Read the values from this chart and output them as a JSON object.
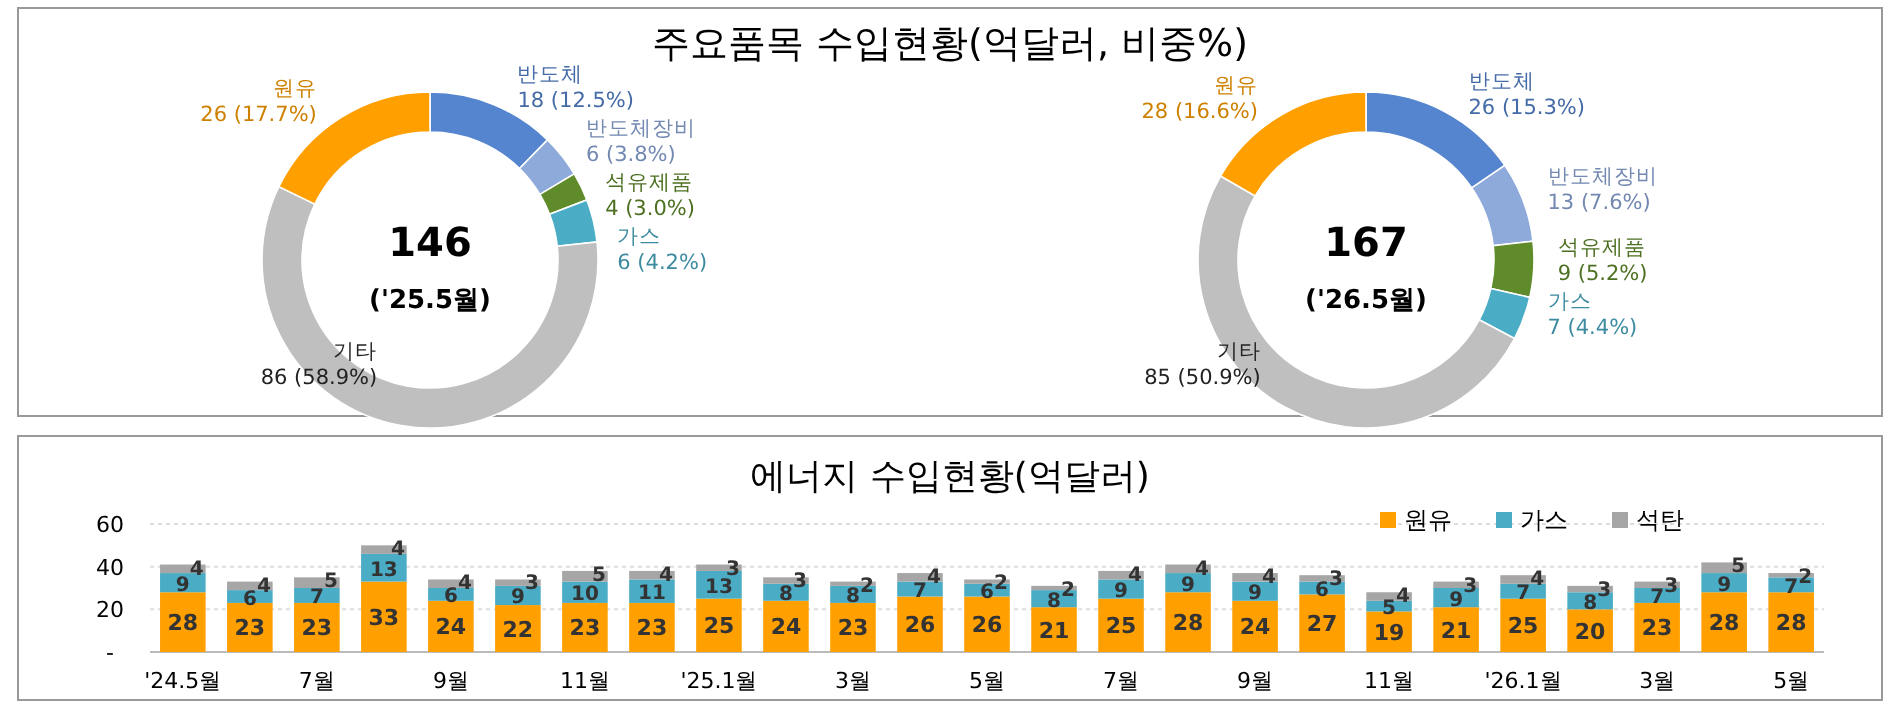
{
  "chart_data": [
    {
      "type": "donut",
      "title": "주요품목 수입현황(억달러, 비중%)",
      "annotations": [
        "146",
        "('25.5월)"
      ],
      "categories": [
        "반도체",
        "반도체장비",
        "석유제품",
        "가스",
        "기타",
        "원유"
      ],
      "values": [
        18,
        6,
        4,
        6,
        86,
        26
      ],
      "value_labels": [
        "18 (12.5%)",
        "6 (3.8%)",
        "4 (3.0%)",
        "6 (4.2%)",
        "86 (58.9%)",
        "26 (17.7%)"
      ],
      "colors": [
        "#5585cf",
        "#8eaadb",
        "#5f8b2a",
        "#4bacc6",
        "#bfbfbf",
        "#ff9f00"
      ]
    },
    {
      "type": "donut",
      "annotations": [
        "167",
        "('26.5월)"
      ],
      "categories": [
        "반도체",
        "반도체장비",
        "석유제품",
        "가스",
        "기타",
        "원유"
      ],
      "values": [
        26,
        13,
        9,
        7,
        85,
        28
      ],
      "value_labels": [
        "26 (15.3%)",
        "13 (7.6%)",
        "9 (5.2%)",
        "7 (4.4%)",
        "85 (50.9%)",
        "28 (16.6%)"
      ],
      "colors": [
        "#5585cf",
        "#8eaadb",
        "#5f8b2a",
        "#4bacc6",
        "#bfbfbf",
        "#ff9f00"
      ]
    },
    {
      "type": "bar",
      "stacked": true,
      "title": "에너지 수입현황(억달러)",
      "categories": [
        "'24.5월",
        null,
        "7월",
        null,
        "9월",
        null,
        "11월",
        null,
        "'25.1월",
        null,
        "3월",
        null,
        "5월",
        null,
        "7월",
        null,
        "9월",
        null,
        "11월",
        null,
        "'26.1월",
        null,
        "3월",
        null,
        "5월"
      ],
      "series": [
        {
          "name": "원유",
          "color": "#ff9f00",
          "values": [
            28,
            23,
            23,
            33,
            24,
            22,
            23,
            23,
            25,
            24,
            23,
            26,
            26,
            21,
            25,
            28,
            24,
            27,
            19,
            21,
            25,
            20,
            23,
            28,
            28
          ]
        },
        {
          "name": "가스",
          "color": "#4bacc6",
          "values": [
            9,
            6,
            7,
            13,
            6,
            9,
            10,
            11,
            13,
            8,
            8,
            7,
            6,
            8,
            9,
            9,
            9,
            6,
            5,
            9,
            7,
            8,
            7,
            9,
            7
          ]
        },
        {
          "name": "석탄",
          "color": "#a6a6a6",
          "values": [
            4,
            4,
            5,
            4,
            4,
            3,
            5,
            4,
            3,
            3,
            2,
            4,
            2,
            2,
            4,
            4,
            4,
            3,
            4,
            3,
            4,
            3,
            3,
            5,
            2
          ]
        }
      ],
      "ylim": [
        0,
        60
      ],
      "yticks": [
        {
          "value": 0,
          "label": "-"
        },
        20,
        40,
        60
      ],
      "grid": "y",
      "legend": "top right",
      "data_labels": true
    }
  ]
}
